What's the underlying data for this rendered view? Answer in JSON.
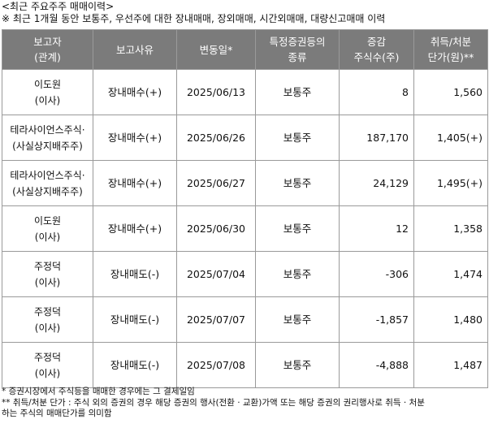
{
  "title": "<최근 주요주주 매매이력>",
  "subtitle": "※ 최근 1개월 동안 보통주, 우선주에 대한 장내매매, 장외매매, 시간외매매, 대량신고매매 이력",
  "headers": [
    [
      "보고자",
      "(관계)"
    ],
    [
      "보고사유"
    ],
    [
      "변동일*"
    ],
    [
      "특정증권등의",
      "종류"
    ],
    [
      "증감",
      "주식수(주)"
    ],
    [
      "취득/처분",
      "단가(원)**"
    ]
  ],
  "rows": [
    {
      "name": "이도원",
      "relation": "(이사)",
      "reason": "장내매수(+)",
      "date": "2025/06/13",
      "type": "보통주",
      "change": "8",
      "price": "1,560"
    },
    {
      "name": "테라사이언스주식·",
      "relation": "(사실상지배주주)",
      "reason": "장내매수(+)",
      "date": "2025/06/26",
      "type": "보통주",
      "change": "187,170",
      "price": "1,405(+)"
    },
    {
      "name": "테라사이언스주식·",
      "relation": "(사실상지배주주)",
      "reason": "장내매수(+)",
      "date": "2025/06/27",
      "type": "보통주",
      "change": "24,129",
      "price": "1,495(+)"
    },
    {
      "name": "이도원",
      "relation": "(이사)",
      "reason": "장내매수(+)",
      "date": "2025/06/30",
      "type": "보통주",
      "change": "12",
      "price": "1,358"
    },
    {
      "name": "주정덕",
      "relation": "(이사)",
      "reason": "장내매도(-)",
      "date": "2025/07/04",
      "type": "보통주",
      "change": "-306",
      "price": "1,474"
    },
    {
      "name": "주정덕",
      "relation": "(이사)",
      "reason": "장내매도(-)",
      "date": "2025/07/07",
      "type": "보통주",
      "change": "-1,857",
      "price": "1,480"
    },
    {
      "name": "주정덕",
      "relation": "(이사)",
      "reason": "장내매도(-)",
      "date": "2025/07/08",
      "type": "보통주",
      "change": "-4,888",
      "price": "1,487"
    }
  ],
  "notes": {
    "note1": "* 증권시장에서 주식등을 매매한 경우에는 그 결제일임",
    "note2_line1": "** 취득/처분 단가 : 주식 외의 증권의 경우 해당 증권의 행사(전환 · 교환)가액 또는 해당 증권의 권리행사로 취득 · 처분",
    "note2_line2": "하는 주식의 매매단가를 의미함"
  },
  "colors": {
    "header_bg": "#7b7b7b",
    "header_text": "#ffffff",
    "border": "#9a9a9a"
  }
}
